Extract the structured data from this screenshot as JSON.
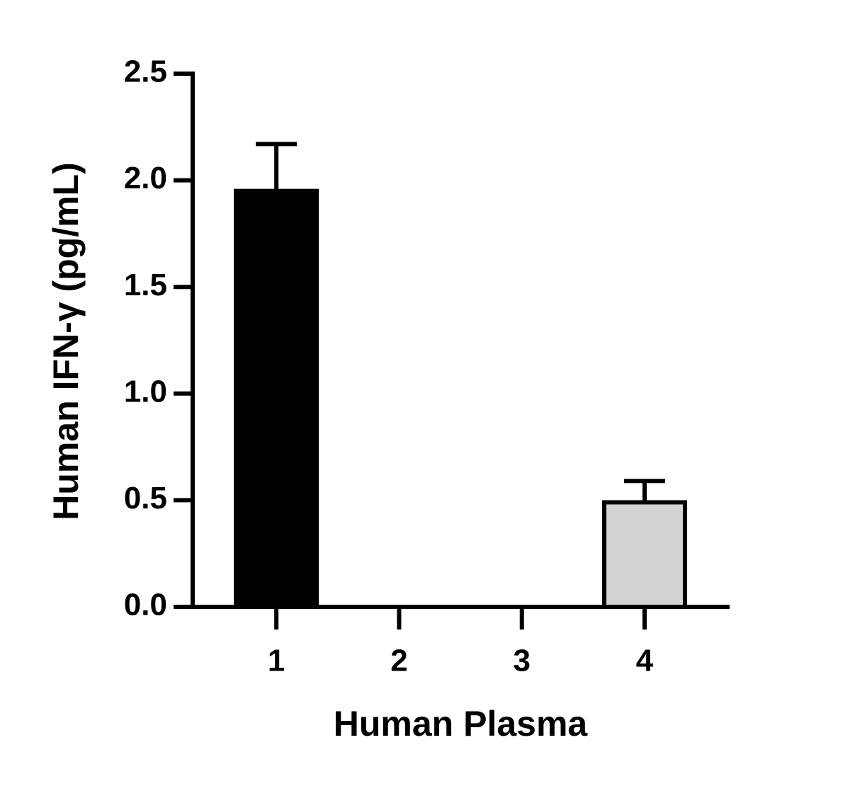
{
  "chart_data": {
    "type": "bar",
    "x_label": "Human Plasma",
    "y_label": "Human IFN-γ (pg/mL)",
    "categories": [
      "1",
      "2",
      "3",
      "4"
    ],
    "values": [
      1.95,
      0,
      0,
      0.49
    ],
    "errors": [
      0.22,
      null,
      null,
      0.1
    ],
    "colors": [
      "#000000",
      "#ffffff",
      "#ffffff",
      "#d3d3d3"
    ],
    "ylim": [
      0,
      2.5
    ],
    "yticks": [
      {
        "value": 0,
        "label": "0.0"
      },
      0.5,
      {
        "value": 1,
        "label": "1.0"
      },
      1.5,
      {
        "value": 2,
        "label": "2.0"
      },
      2.5
    ],
    "grid": false
  }
}
